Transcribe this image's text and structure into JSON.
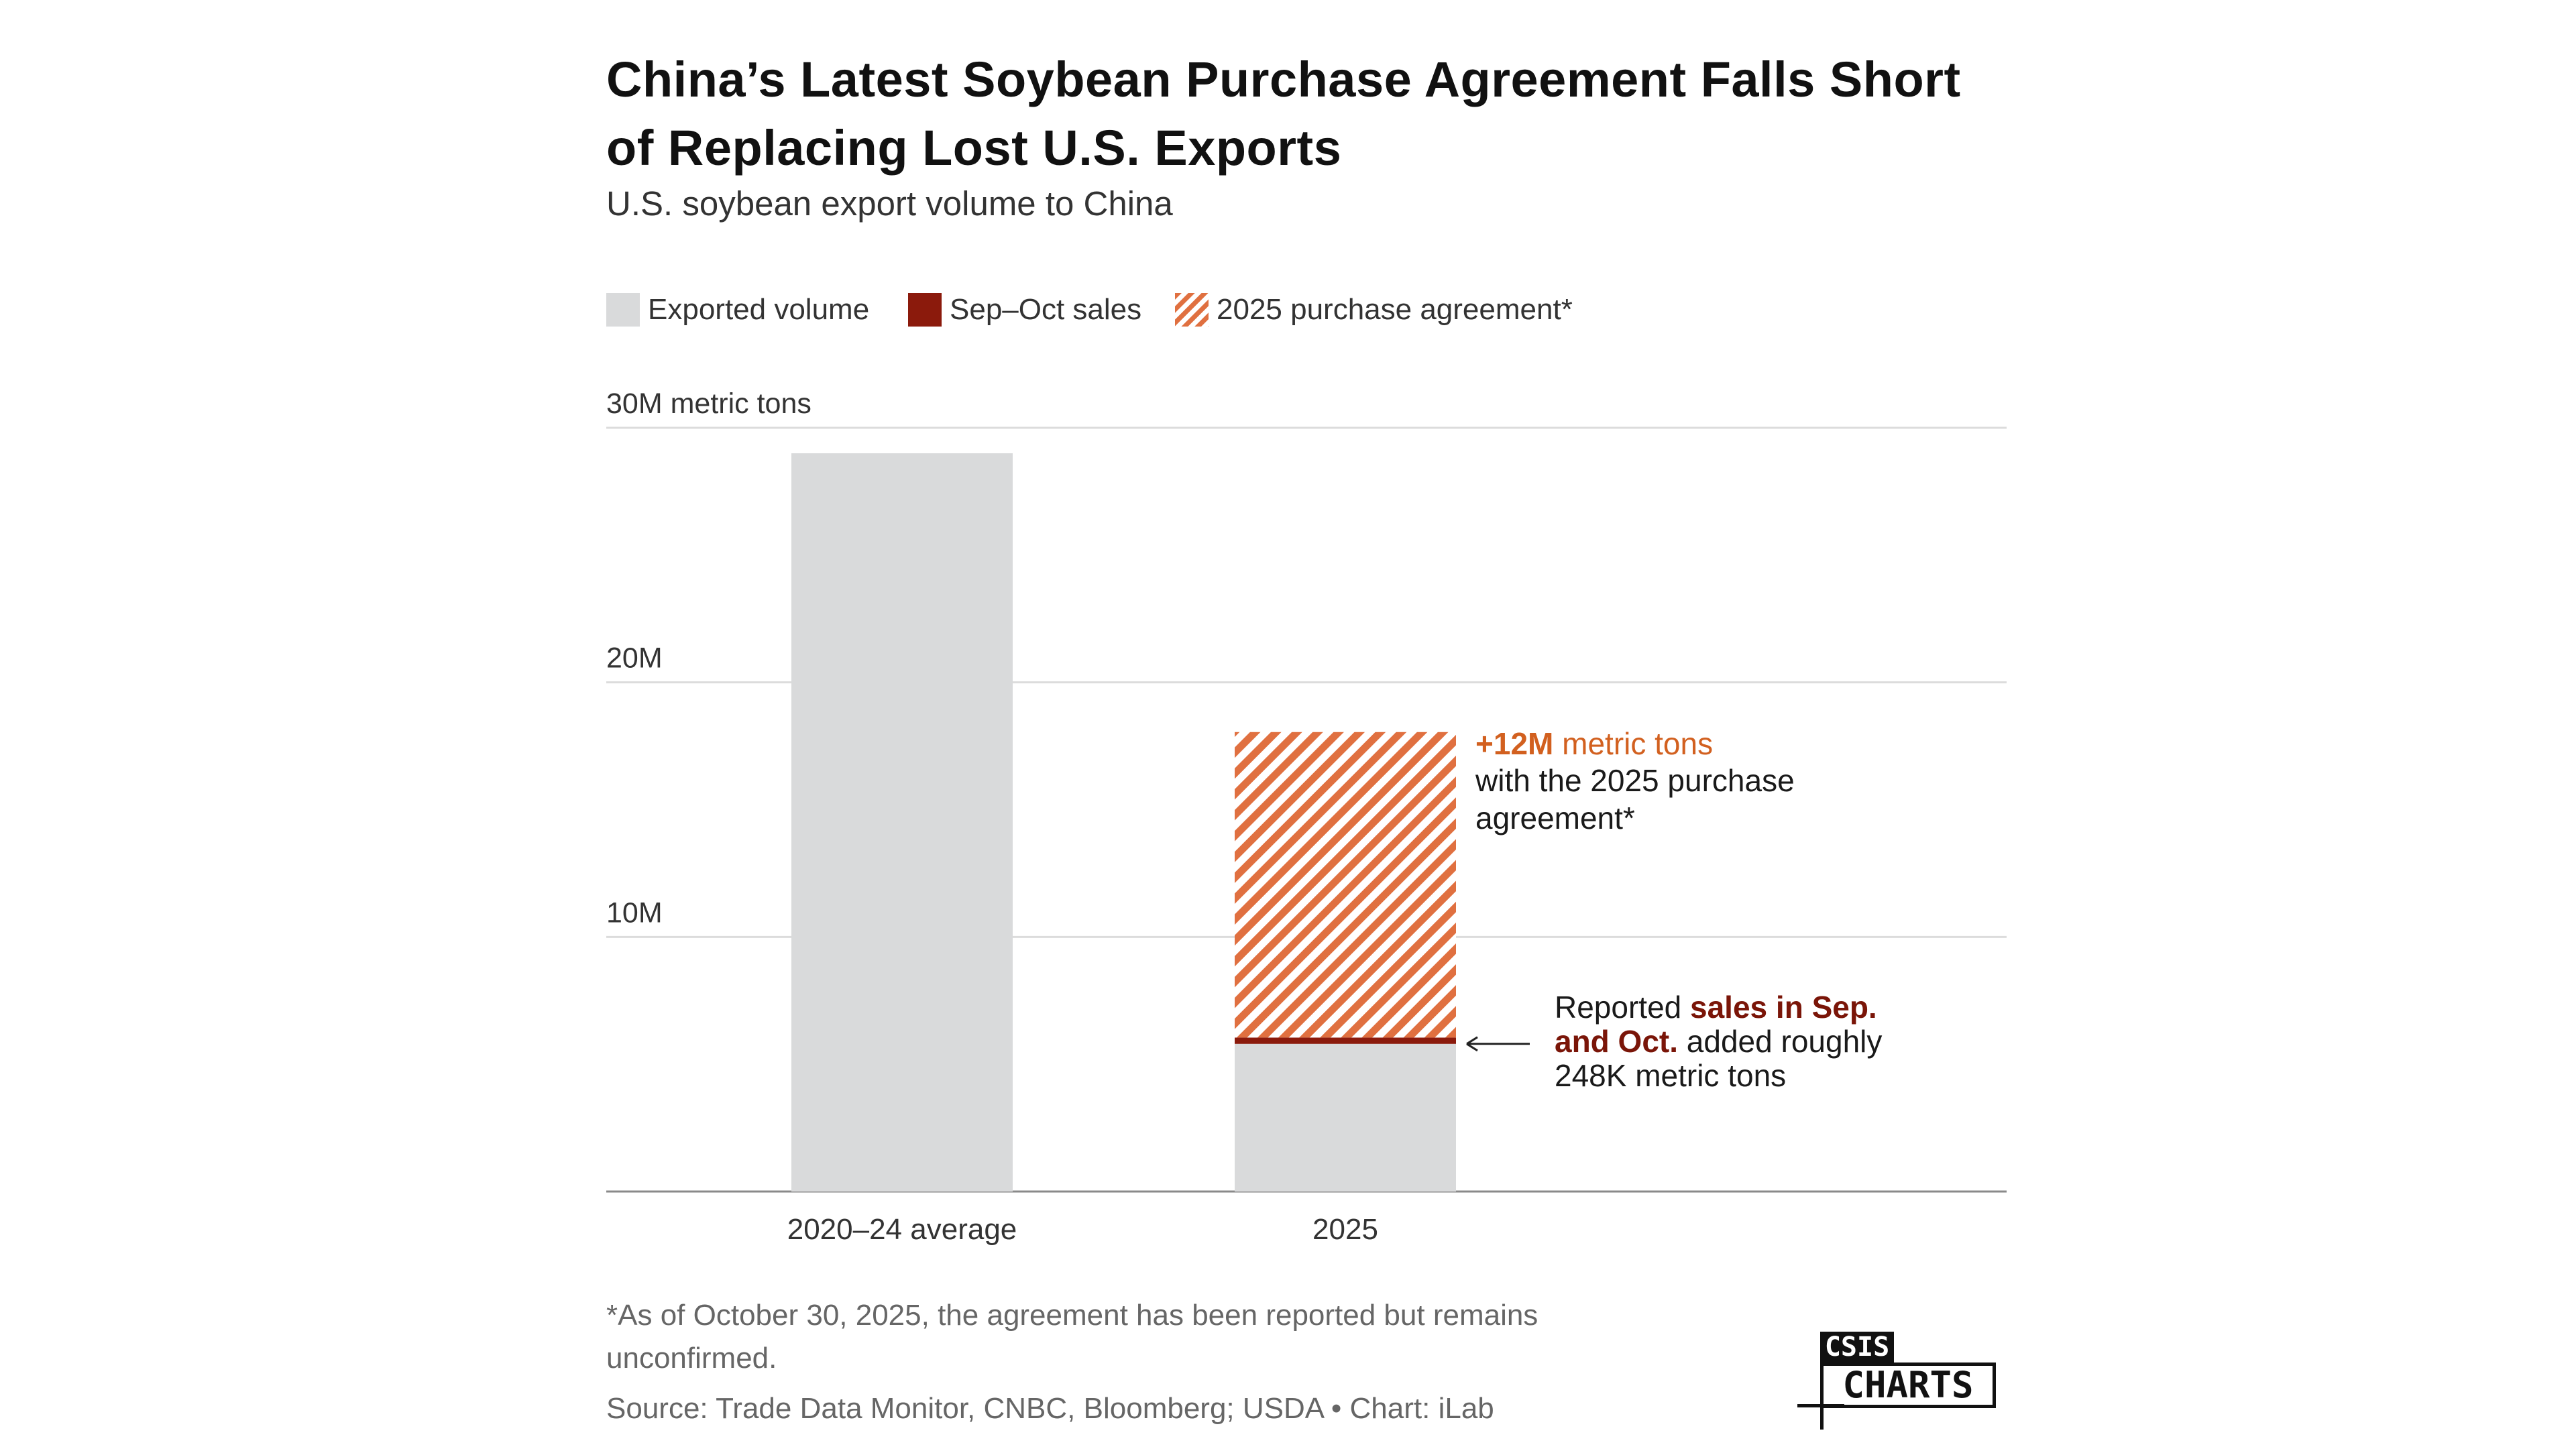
{
  "chart_data": {
    "type": "bar",
    "title": "China’s Latest Soybean Purchase Agreement Falls Short of Replacing Lost U.S. Exports",
    "subtitle": "U.S. soybean export volume to China",
    "categories": [
      "2020–24 average",
      "2025"
    ],
    "series": [
      {
        "name": "Exported volume",
        "values": [
          29.0,
          5.8
        ],
        "color": "#d9dadb"
      },
      {
        "name": "Sep–Oct sales",
        "values": [
          0,
          0.248
        ],
        "color": "#8b1a0c"
      },
      {
        "name": "2025 purchase agreement*",
        "values": [
          0,
          12.0
        ],
        "color": "#e07040",
        "pattern": "diagonal-hatch"
      }
    ],
    "stacked": true,
    "ylim": [
      0,
      30
    ],
    "y_ticks": [
      {
        "value": 10,
        "label": "10M"
      },
      {
        "value": 20,
        "label": "20M"
      },
      {
        "value": 30,
        "label": "30M metric tons"
      }
    ],
    "grid": true,
    "legend_position": "top-left",
    "annotations": [
      {
        "target": "purchase-agreement",
        "parts": [
          {
            "text": "+12M",
            "style": "bold-orange"
          },
          {
            "text": " metric tons",
            "style": "orange"
          },
          {
            "text": "with the 2025 purchase agreement*",
            "style": "plain"
          }
        ]
      },
      {
        "target": "sep-oct-sales",
        "parts": [
          {
            "text": "Reported ",
            "style": "plain"
          },
          {
            "text": "sales in Sep. and Oct.",
            "style": "bold-red"
          },
          {
            "text": " added roughly 248K metric tons",
            "style": "plain"
          }
        ]
      }
    ]
  },
  "footer": {
    "note": "*As of October 30, 2025, the agreement has been reported but remains unconfirmed.",
    "source": "Source: Trade Data Monitor, CNBC, Bloomberg; USDA • Chart: iLab"
  },
  "logo": {
    "top": "CSIS",
    "bottom": "CHARTS"
  }
}
